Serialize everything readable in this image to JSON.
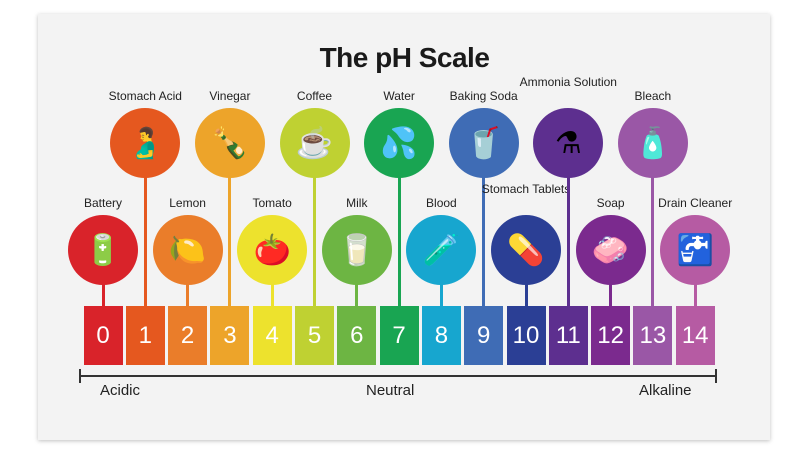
{
  "title": "The pH Scale",
  "scale": [
    {
      "ph": "0",
      "color": "#d9232a",
      "item": "Battery",
      "icon": "battery-icon",
      "glyph": "🔋"
    },
    {
      "ph": "1",
      "color": "#e5581f",
      "item": "Stomach Acid",
      "icon": "stomach-icon",
      "glyph": "🫃"
    },
    {
      "ph": "2",
      "color": "#ea7d2a",
      "item": "Lemon",
      "icon": "lemon-icon",
      "glyph": "🍋"
    },
    {
      "ph": "3",
      "color": "#eda42a",
      "item": "Vinegar",
      "icon": "vinegar-bottle-icon",
      "glyph": "🍾"
    },
    {
      "ph": "4",
      "color": "#ede22d",
      "item": "Tomato",
      "icon": "tomato-icon",
      "glyph": "🍅"
    },
    {
      "ph": "5",
      "color": "#bfd132",
      "item": "Coffee",
      "icon": "coffee-cup-icon",
      "glyph": "☕"
    },
    {
      "ph": "6",
      "color": "#6db543",
      "item": "Milk",
      "icon": "milk-bottle-icon",
      "glyph": "🥛"
    },
    {
      "ph": "7",
      "color": "#19a552",
      "item": "Water",
      "icon": "water-splash-icon",
      "glyph": "💦"
    },
    {
      "ph": "8",
      "color": "#17a6cf",
      "item": "Blood",
      "icon": "blood-tube-icon",
      "glyph": "🧪"
    },
    {
      "ph": "9",
      "color": "#3f6cb5",
      "item": "Baking Soda",
      "icon": "baking-soda-icon",
      "glyph": "🥤"
    },
    {
      "ph": "10",
      "color": "#2b3f95",
      "item": "Stomach Tablets",
      "icon": "stomach-tablets-icon",
      "glyph": "💊"
    },
    {
      "ph": "11",
      "color": "#5d2f8f",
      "item": "Ammonia Solution",
      "icon": "flask-icon",
      "glyph": "⚗"
    },
    {
      "ph": "12",
      "color": "#7b2a8e",
      "item": "Soap",
      "icon": "soap-icon",
      "glyph": "🧼"
    },
    {
      "ph": "13",
      "color": "#9a57a6",
      "item": "Bleach",
      "icon": "bleach-jug-icon",
      "glyph": "🧴"
    },
    {
      "ph": "14",
      "color": "#b65ba3",
      "item": "Drain Cleaner",
      "icon": "sink-icon",
      "glyph": "🚰"
    }
  ],
  "axis": {
    "left": "Acidic",
    "middle": "Neutral",
    "right": "Alkaline"
  }
}
